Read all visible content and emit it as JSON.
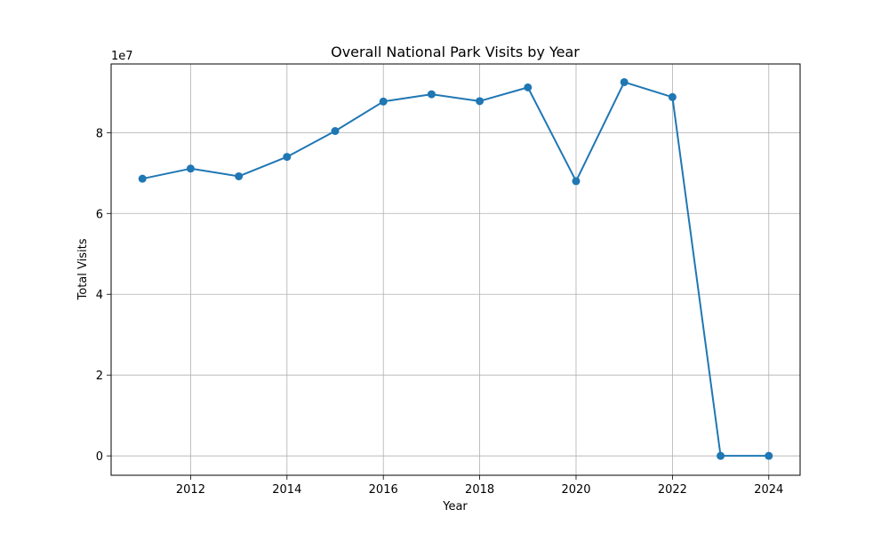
{
  "chart_data": {
    "type": "line",
    "title": "Overall National Park Visits by Year",
    "xlabel": "Year",
    "ylabel": "Total Visits",
    "y_offset_label": "1e7",
    "x_ticks": [
      2012,
      2014,
      2016,
      2018,
      2020,
      2022,
      2024
    ],
    "y_ticks": [
      0,
      2,
      4,
      6,
      8
    ],
    "xlim": [
      2010.35,
      2024.65
    ],
    "ylim": [
      -0.48,
      9.7
    ],
    "grid": true,
    "series": [
      {
        "color": "#1f77b4",
        "marker": "circle",
        "x": [
          2011,
          2012,
          2013,
          2014,
          2015,
          2016,
          2017,
          2018,
          2019,
          2020,
          2021,
          2022,
          2023,
          2024
        ],
        "y": [
          6.86,
          7.11,
          6.92,
          7.4,
          8.04,
          8.77,
          8.95,
          8.78,
          9.12,
          6.8,
          9.25,
          8.88,
          0.0,
          0.0
        ]
      }
    ]
  }
}
